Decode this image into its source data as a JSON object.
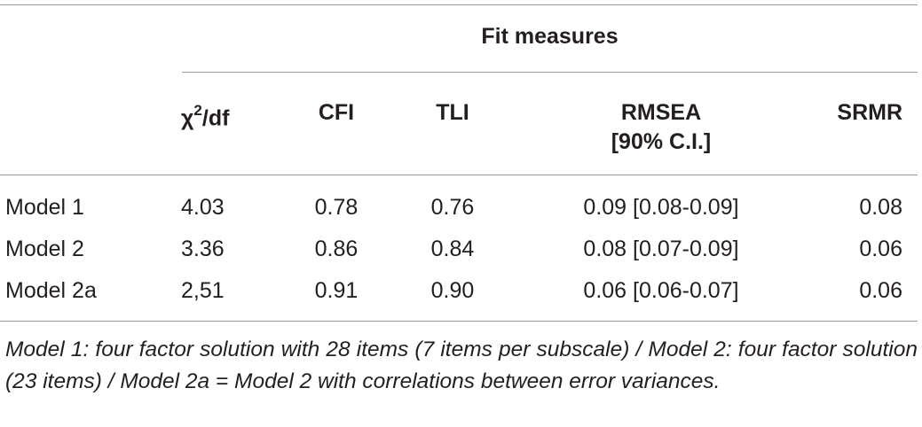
{
  "table": {
    "group_header": "Fit measures",
    "columns": {
      "chi_symbol": "χ",
      "chi_exp": "2",
      "chi_rest": "/df",
      "cfi": "CFI",
      "tli": "TLI",
      "rmsea_line1": "RMSEA",
      "rmsea_line2": "[90% C.I.]",
      "srmr": "SRMR"
    },
    "rows": [
      {
        "model": "Model 1",
        "chi": "4.03",
        "cfi": "0.78",
        "tli": "0.76",
        "rmsea": "0.09 [0.08-0.09]",
        "srmr": "0.08"
      },
      {
        "model": "Model 2",
        "chi": "3.36",
        "cfi": "0.86",
        "tli": "0.84",
        "rmsea": "0.08 [0.07-0.09]",
        "srmr": "0.06"
      },
      {
        "model": "Model 2a",
        "chi": "2,51",
        "cfi": "0.91",
        "tli": "0.90",
        "rmsea": "0.06 [0.06-0.07]",
        "srmr": "0.06"
      }
    ],
    "footnote": "Model 1: four factor solution with 28 items (7 items per subscale) / Model 2: four factor solution (23 items) / Model 2a = Model 2 with correlations between error variances."
  }
}
